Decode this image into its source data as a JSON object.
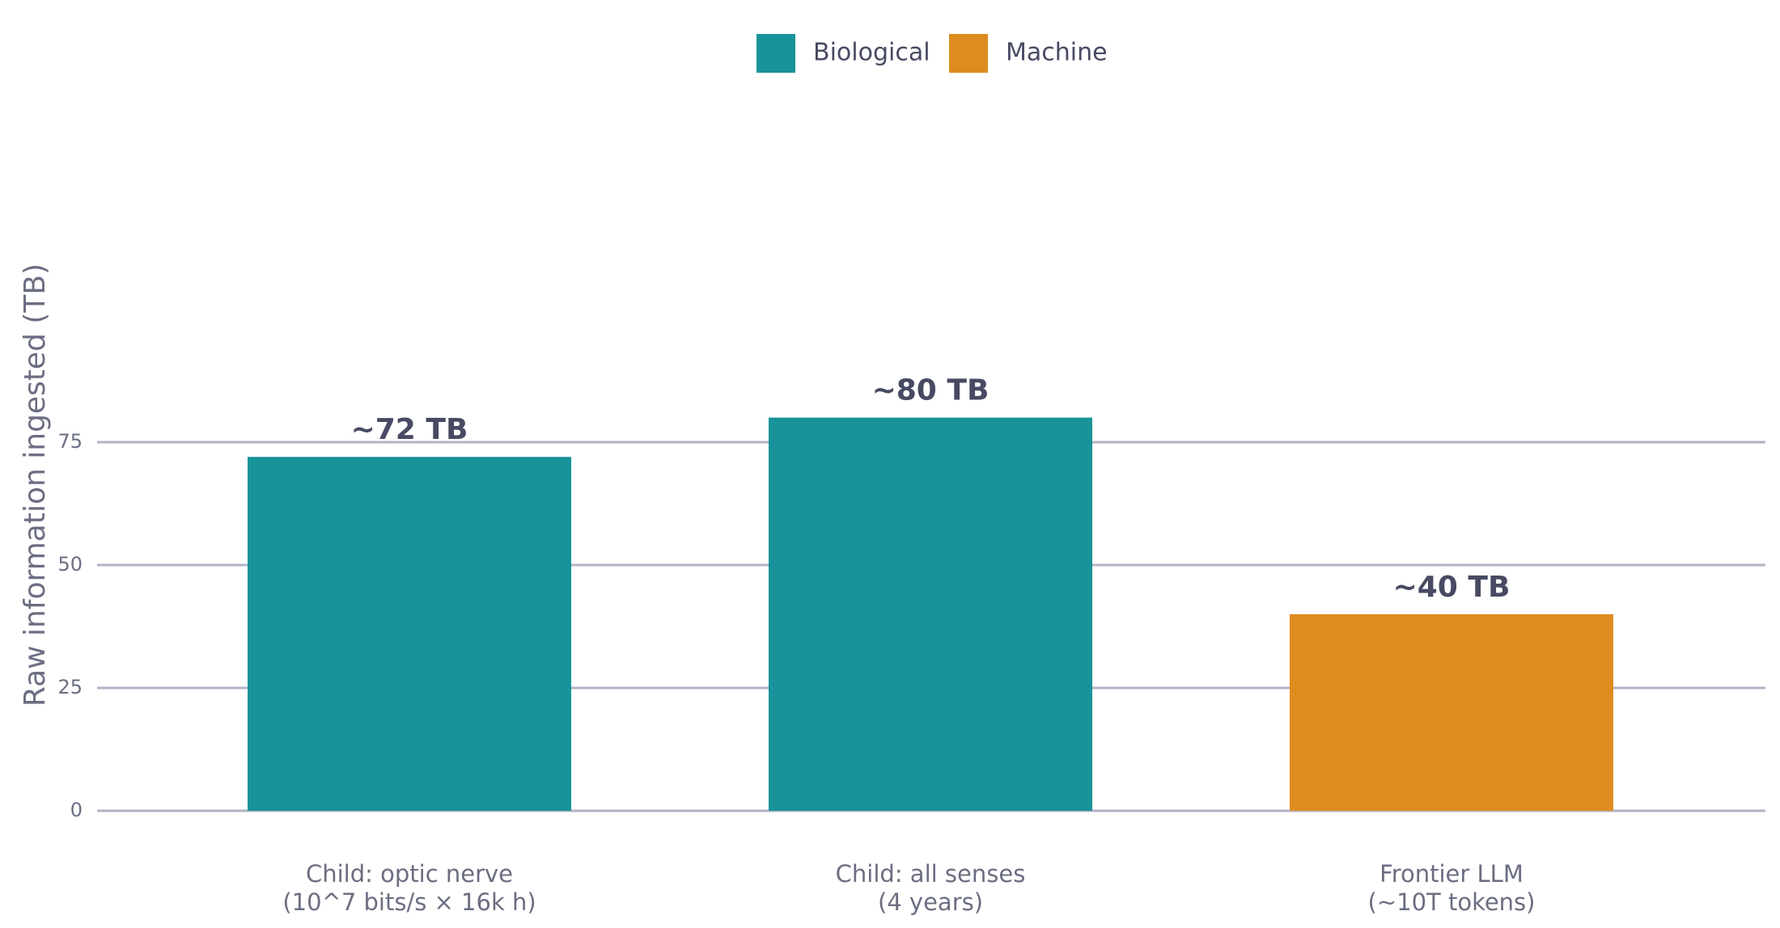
{
  "chart_data": {
    "type": "bar",
    "categories": [
      [
        "Child: optic nerve",
        "(10^7 bits/s × 16k h)"
      ],
      [
        "Child: all senses",
        "(4 years)"
      ],
      [
        "Frontier LLM",
        "(~10T tokens)"
      ]
    ],
    "values": [
      72,
      80,
      40
    ],
    "data_labels": [
      "~72 TB",
      "~80 TB",
      "~40 TB"
    ],
    "groups": [
      "Biological",
      "Biological",
      "Machine"
    ],
    "legend": [
      {
        "name": "Biological",
        "color": "#18939a"
      },
      {
        "name": "Machine",
        "color": "#de8c1f"
      }
    ],
    "title": "",
    "xlabel": "",
    "ylabel": "Raw information ingested (TB)",
    "ylim": [
      0,
      90
    ],
    "yticks": [
      0,
      25,
      50,
      75
    ],
    "grid": true,
    "legend_position": "top-center"
  }
}
